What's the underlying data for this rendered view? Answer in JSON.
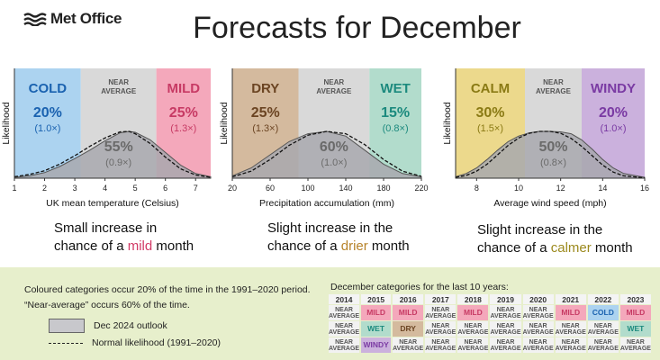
{
  "header": {
    "logo": "Met Office",
    "title": "Forecasts for December"
  },
  "colors": {
    "cold": "#acd3f0",
    "mild": "#f4a8bb",
    "dry": "#d4ba9e",
    "wet": "#b2dccc",
    "calm": "#ecd98c",
    "windy": "#cbb1dd",
    "near": "#d9d9d9",
    "outlook_fill": "#a8a8ae",
    "mild_text": "#d23a66",
    "drier_text": "#b7832a",
    "calmer_text": "#9c8a1e",
    "blue_text": "#1a62b0",
    "red_text": "#c73a64",
    "brown_text": "#6b4422",
    "teal_text": "#1c8a7e",
    "olive_text": "#8a7a14",
    "purple_text": "#7a3aa3",
    "grey_text": "#777777"
  },
  "panels": [
    {
      "ylabel": "Likelihood",
      "xlabel": "UK mean temperature (Celsius)",
      "categories": [
        {
          "name": "COLD",
          "pct": "20%",
          "ratio": "(1.0×)"
        },
        {
          "name": "NEAR AVERAGE",
          "pct": "55%",
          "ratio": "(0.9×)"
        },
        {
          "name": "MILD",
          "pct": "25%",
          "ratio": "(1.3×)"
        }
      ],
      "caption": [
        "Small increase in",
        "chance of a ",
        "mild",
        " month"
      ]
    },
    {
      "ylabel": "Likelihood",
      "xlabel": "Precipitation accumulation (mm)",
      "categories": [
        {
          "name": "DRY",
          "pct": "25%",
          "ratio": "(1.3×)"
        },
        {
          "name": "NEAR AVERAGE",
          "pct": "60%",
          "ratio": "(1.0×)"
        },
        {
          "name": "WET",
          "pct": "15%",
          "ratio": "(0.8×)"
        }
      ],
      "caption": [
        "Slight increase in the",
        "chance of a ",
        "drier",
        " month"
      ]
    },
    {
      "ylabel": "Likelihood",
      "xlabel": "Average wind speed (mph)",
      "categories": [
        {
          "name": "CALM",
          "pct": "30%",
          "ratio": "(1.5×)"
        },
        {
          "name": "NEAR AVERAGE",
          "pct": "50%",
          "ratio": "(0.8×)"
        },
        {
          "name": "WINDY",
          "pct": "20%",
          "ratio": "(1.0×)"
        }
      ],
      "caption": [
        "Slight increase in the",
        "chance of a ",
        "calmer",
        " month"
      ]
    }
  ],
  "chart_data": [
    {
      "type": "area",
      "xlabel": "UK mean temperature (Celsius)",
      "ylabel": "Likelihood",
      "xlim": [
        1,
        7.5
      ],
      "xticks": [
        "1",
        "2",
        "3",
        "4",
        "5",
        "6",
        "7"
      ],
      "thresholds": [
        3.2,
        5.7
      ],
      "series": [
        {
          "name": "Dec 2024 outlook",
          "x": [
            1,
            1.5,
            2,
            2.5,
            3,
            3.5,
            4,
            4.5,
            4.8,
            5,
            5.5,
            6,
            6.5,
            7,
            7.5
          ],
          "y": [
            0.02,
            0.05,
            0.12,
            0.25,
            0.42,
            0.6,
            0.8,
            0.97,
            1.0,
            0.98,
            0.82,
            0.55,
            0.28,
            0.1,
            0.03
          ]
        },
        {
          "name": "Normal likelihood (1991–2020)",
          "x": [
            1,
            1.5,
            2,
            2.5,
            3,
            3.5,
            4,
            4.5,
            4.8,
            5,
            5.5,
            6,
            6.5,
            7,
            7.5
          ],
          "y": [
            0.03,
            0.08,
            0.16,
            0.3,
            0.48,
            0.68,
            0.86,
            0.99,
            1.0,
            0.95,
            0.74,
            0.45,
            0.2,
            0.07,
            0.02
          ]
        }
      ]
    },
    {
      "type": "area",
      "xlabel": "Precipitation accumulation (mm)",
      "ylabel": "Likelihood",
      "xlim": [
        20,
        220
      ],
      "xticks": [
        "20",
        "60",
        "100",
        "140",
        "180",
        "220"
      ],
      "thresholds": [
        90,
        165
      ],
      "series": [
        {
          "name": "Dec 2024 outlook",
          "x": [
            20,
            40,
            60,
            80,
            100,
            120,
            140,
            160,
            180,
            200,
            220
          ],
          "y": [
            0.05,
            0.22,
            0.5,
            0.78,
            0.95,
            1.0,
            0.9,
            0.6,
            0.3,
            0.1,
            0.03
          ]
        },
        {
          "name": "Normal likelihood (1991–2020)",
          "x": [
            20,
            40,
            60,
            80,
            100,
            120,
            140,
            160,
            180,
            200,
            220
          ],
          "y": [
            0.03,
            0.15,
            0.4,
            0.7,
            0.92,
            1.0,
            0.95,
            0.72,
            0.4,
            0.15,
            0.04
          ]
        }
      ]
    },
    {
      "type": "area",
      "xlabel": "Average wind speed (mph)",
      "ylabel": "Likelihood",
      "xlim": [
        7,
        16
      ],
      "xticks": [
        "8",
        "10",
        "12",
        "14",
        "16"
      ],
      "thresholds": [
        10.3,
        13
      ],
      "series": [
        {
          "name": "Dec 2024 outlook",
          "x": [
            7,
            7.5,
            8,
            8.5,
            9,
            9.5,
            10,
            10.5,
            11,
            11.5,
            12,
            12.5,
            13,
            13.5,
            14,
            14.5,
            15,
            16
          ],
          "y": [
            0.03,
            0.1,
            0.22,
            0.4,
            0.6,
            0.78,
            0.9,
            0.97,
            1.0,
            1.0,
            0.99,
            0.95,
            0.82,
            0.62,
            0.4,
            0.22,
            0.1,
            0.02
          ]
        },
        {
          "name": "Normal likelihood (1991–2020)",
          "x": [
            7,
            7.5,
            8,
            8.5,
            9,
            9.5,
            10,
            10.5,
            11,
            11.5,
            12,
            12.5,
            13,
            13.5,
            14,
            14.5,
            15,
            16
          ],
          "y": [
            0.02,
            0.06,
            0.15,
            0.3,
            0.5,
            0.7,
            0.86,
            0.96,
            1.0,
            1.0,
            0.96,
            0.85,
            0.68,
            0.48,
            0.28,
            0.13,
            0.05,
            0.01
          ]
        }
      ]
    }
  ],
  "legend": {
    "note_line1": "Coloured categories occur 20% of the time in the 1991–2020 period.",
    "note_line2": "“Near-average” occurs 60% of the time.",
    "outlook_label": "Dec 2024 outlook",
    "normal_label": "Normal likelihood (1991–2020)"
  },
  "history": {
    "title": "December categories for the last 10 years:",
    "years": [
      "2014",
      "2015",
      "2016",
      "2017",
      "2018",
      "2019",
      "2020",
      "2021",
      "2022",
      "2023"
    ],
    "rows": [
      [
        "NEAR AVERAGE",
        "MILD",
        "MILD",
        "NEAR AVERAGE",
        "MILD",
        "NEAR AVERAGE",
        "NEAR AVERAGE",
        "MILD",
        "COLD",
        "MILD"
      ],
      [
        "NEAR AVERAGE",
        "WET",
        "DRY",
        "NEAR AVERAGE",
        "NEAR AVERAGE",
        "NEAR AVERAGE",
        "NEAR AVERAGE",
        "NEAR AVERAGE",
        "NEAR AVERAGE",
        "WET"
      ],
      [
        "NEAR AVERAGE",
        "WINDY",
        "NEAR AVERAGE",
        "NEAR AVERAGE",
        "NEAR AVERAGE",
        "NEAR AVERAGE",
        "NEAR AVERAGE",
        "NEAR AVERAGE",
        "NEAR AVERAGE",
        "NEAR AVERAGE"
      ]
    ]
  }
}
